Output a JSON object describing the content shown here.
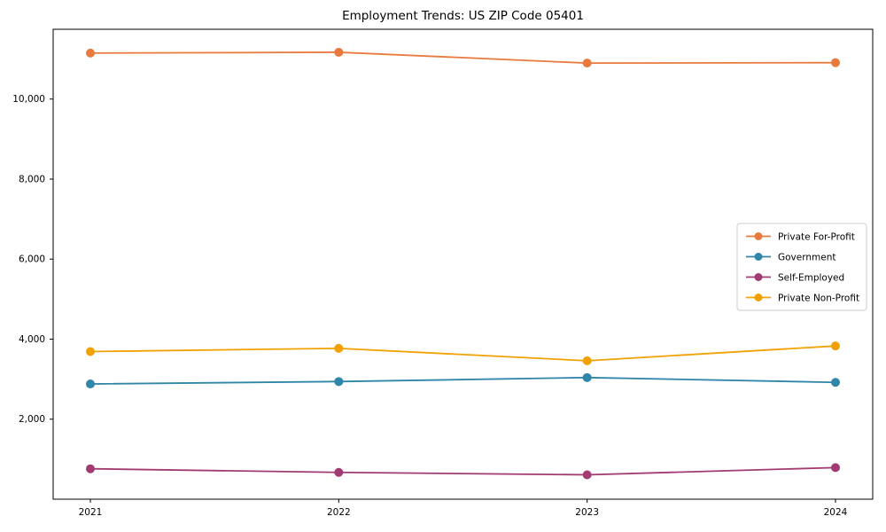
{
  "title": "Employment Trends: US ZIP Code 05401",
  "chart_data": {
    "type": "line",
    "title": "Employment Trends: US ZIP Code 05401",
    "x": [
      2021,
      2022,
      2023,
      2024
    ],
    "x_tick_labels": [
      "2021",
      "2022",
      "2023",
      "2024"
    ],
    "series": [
      {
        "name": "Private For-Profit",
        "color": "#E87A3E",
        "values": [
          11150,
          11170,
          10900,
          10910
        ]
      },
      {
        "name": "Government",
        "color": "#2F86A8",
        "values": [
          2880,
          2940,
          3040,
          2920
        ]
      },
      {
        "name": "Self-Employed",
        "color": "#A23B72",
        "values": [
          760,
          670,
          610,
          790
        ]
      },
      {
        "name": "Private Non-Profit",
        "color": "#F1A104",
        "values": [
          3690,
          3770,
          3460,
          3830
        ]
      }
    ],
    "xlabel": "",
    "ylabel": "",
    "ylim": [
      0,
      11745
    ],
    "yticks": [
      2000,
      4000,
      6000,
      8000,
      10000
    ],
    "ytick_labels": [
      "2,000",
      "4,000",
      "6,000",
      "8,000",
      "10,000"
    ],
    "grid": false,
    "legend_position": "center right",
    "marker": "circle",
    "axis_color": "#000000",
    "legend_border_color": "#cccccc",
    "legend_bg_color": "#ffffff"
  }
}
